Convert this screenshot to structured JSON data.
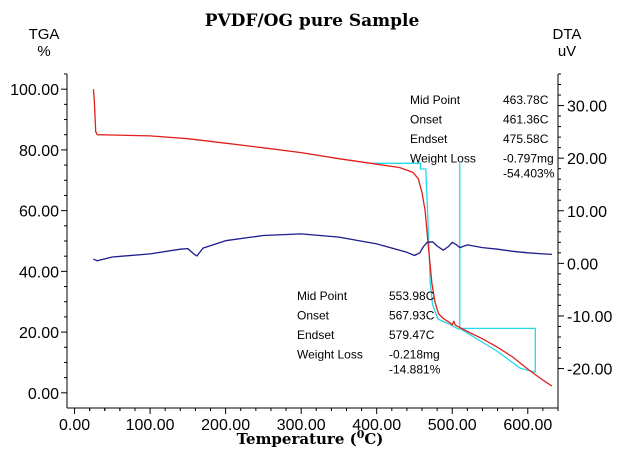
{
  "chart_data": {
    "type": "line",
    "title": "PVDF/OG pure Sample",
    "xlabel": {
      "text": "Temperature (",
      "sup": "0",
      "suffix": "C)"
    },
    "y_left": {
      "name": "TGA",
      "unit": "%",
      "ylim": [
        -5.0,
        105.0
      ],
      "ticks": [
        "100.00",
        "80.00",
        "60.00",
        "40.00",
        "20.00",
        "0.00"
      ],
      "tick_values": [
        100,
        80,
        60,
        40,
        20,
        0
      ]
    },
    "y_right": {
      "name": "DTA",
      "unit": "uV",
      "ylim": [
        -27.5,
        36.0
      ],
      "ticks": [
        "30.00",
        "20.00",
        "10.00",
        "0.00",
        "-10.00",
        "-20.00"
      ],
      "tick_values": [
        30,
        20,
        10,
        0,
        -10,
        -20
      ]
    },
    "xlim": [
      -10.0,
      640.0
    ],
    "x_ticks": [
      "0.00",
      "100.00",
      "200.00",
      "300.00",
      "400.00",
      "500.00",
      "600.00"
    ],
    "x_tick_values": [
      0,
      100,
      200,
      300,
      400,
      500,
      600
    ],
    "colors": {
      "tga": "#e0201c",
      "dta": "#1c1c8c",
      "analysis": "#25d9e8",
      "axis": "#000000"
    },
    "series": [
      {
        "axis": "left",
        "color": "#e0201c",
        "points": [
          [
            25,
            100
          ],
          [
            26,
            97
          ],
          [
            27,
            92
          ],
          [
            28,
            86
          ],
          [
            30,
            85
          ],
          [
            50,
            84.9
          ],
          [
            100,
            84.6
          ],
          [
            150,
            83.7
          ],
          [
            200,
            82.2
          ],
          [
            250,
            80.7
          ],
          [
            300,
            79.1
          ],
          [
            350,
            77.1
          ],
          [
            400,
            75.3
          ],
          [
            430,
            74.2
          ],
          [
            448,
            72.6
          ],
          [
            455,
            70.5
          ],
          [
            460,
            66
          ],
          [
            464,
            60
          ],
          [
            467,
            52
          ],
          [
            470,
            44
          ],
          [
            473,
            36
          ],
          [
            477,
            30
          ],
          [
            482,
            26
          ],
          [
            488,
            24.5
          ],
          [
            495,
            23.4
          ],
          [
            500,
            22.4
          ],
          [
            502,
            23.6
          ],
          [
            504,
            22.3
          ],
          [
            510,
            21.5
          ],
          [
            520,
            20.2
          ],
          [
            540,
            17.8
          ],
          [
            560,
            15
          ],
          [
            580,
            11.8
          ],
          [
            600,
            7.8
          ],
          [
            620,
            4.2
          ],
          [
            632,
            2.2
          ]
        ]
      },
      {
        "axis": "right",
        "color": "#1c1c8c",
        "points": [
          [
            25,
            0.8
          ],
          [
            30,
            0.5
          ],
          [
            50,
            1.2
          ],
          [
            100,
            1.8
          ],
          [
            140,
            2.7
          ],
          [
            150,
            2.8
          ],
          [
            157,
            1.9
          ],
          [
            162,
            1.4
          ],
          [
            170,
            2.9
          ],
          [
            200,
            4.3
          ],
          [
            250,
            5.3
          ],
          [
            300,
            5.6
          ],
          [
            350,
            5.0
          ],
          [
            400,
            3.7
          ],
          [
            440,
            2.1
          ],
          [
            450,
            1.5
          ],
          [
            457,
            2.0
          ],
          [
            462,
            3.2
          ],
          [
            467,
            4.0
          ],
          [
            474,
            4.1
          ],
          [
            480,
            3.3
          ],
          [
            488,
            2.5
          ],
          [
            495,
            3.2
          ],
          [
            500,
            4.0
          ],
          [
            505,
            3.6
          ],
          [
            510,
            3.0
          ],
          [
            520,
            3.5
          ],
          [
            540,
            3.0
          ],
          [
            560,
            2.7
          ],
          [
            580,
            2.3
          ],
          [
            600,
            2.0
          ],
          [
            620,
            1.8
          ],
          [
            632,
            1.7
          ]
        ]
      }
    ],
    "analysis_lines": [
      {
        "axis": "left",
        "points": [
          [
            392,
            75.6
          ],
          [
            458,
            75.6
          ],
          [
            458,
            73.7
          ],
          [
            465,
            73.7
          ],
          [
            468,
            55
          ],
          [
            471,
            36
          ],
          [
            474,
            29
          ],
          [
            481,
            24.3
          ],
          [
            488,
            23.5
          ],
          [
            495,
            22.8
          ],
          [
            502,
            21.8
          ],
          [
            510,
            20.8
          ]
        ]
      },
      {
        "axis": "left",
        "points": [
          [
            510,
            75.6
          ],
          [
            510,
            21.2
          ],
          [
            610,
            21.2
          ],
          [
            610,
            6.8
          ]
        ]
      },
      {
        "axis": "left",
        "points": [
          [
            510,
            21.2
          ],
          [
            560,
            13.6
          ],
          [
            590,
            8.1
          ],
          [
            610,
            6.8
          ]
        ]
      }
    ],
    "annotations": [
      {
        "lines": [
          [
            "Mid Point",
            "463.78C"
          ],
          [
            "Onset",
            "461.36C"
          ],
          [
            "Endset",
            "475.58C"
          ],
          [
            "Weight Loss",
            "-0.797mg"
          ],
          [
            "",
            "-54.403%"
          ]
        ]
      },
      {
        "lines": [
          [
            "Mid Point",
            "553.98C"
          ],
          [
            "Onset",
            "567.93C"
          ],
          [
            "Endset",
            "579.47C"
          ],
          [
            "Weight Loss",
            "-0.218mg"
          ],
          [
            "",
            "-14.881%"
          ]
        ]
      }
    ],
    "grid": false,
    "legend": "none"
  }
}
